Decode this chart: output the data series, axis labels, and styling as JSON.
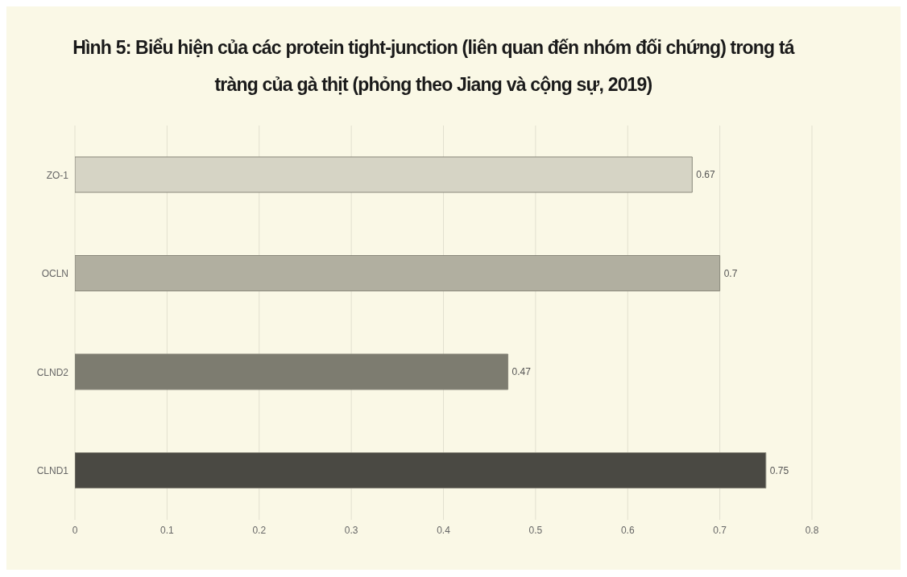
{
  "chart_data": {
    "type": "bar",
    "orientation": "horizontal",
    "title": "Hình 5: Biểu hiện của các protein tight-junction (liên quan đến nhóm đối chứng) trong tá tràng của gà thịt (phỏng theo Jiang và cộng sự, 2019)",
    "categories": [
      "ZO-1",
      "OCLN",
      "CLND2",
      "CLND1"
    ],
    "values": [
      0.67,
      0.7,
      0.47,
      0.75
    ],
    "colors": [
      "#d6d4c5",
      "#b1afa0",
      "#7d7c70",
      "#4a4943"
    ],
    "xlim": [
      0,
      0.8
    ],
    "xticks": [
      0,
      0.1,
      0.2,
      0.3,
      0.4,
      0.5,
      0.6,
      0.7,
      0.8
    ],
    "grid": "x",
    "data_labels": true
  }
}
